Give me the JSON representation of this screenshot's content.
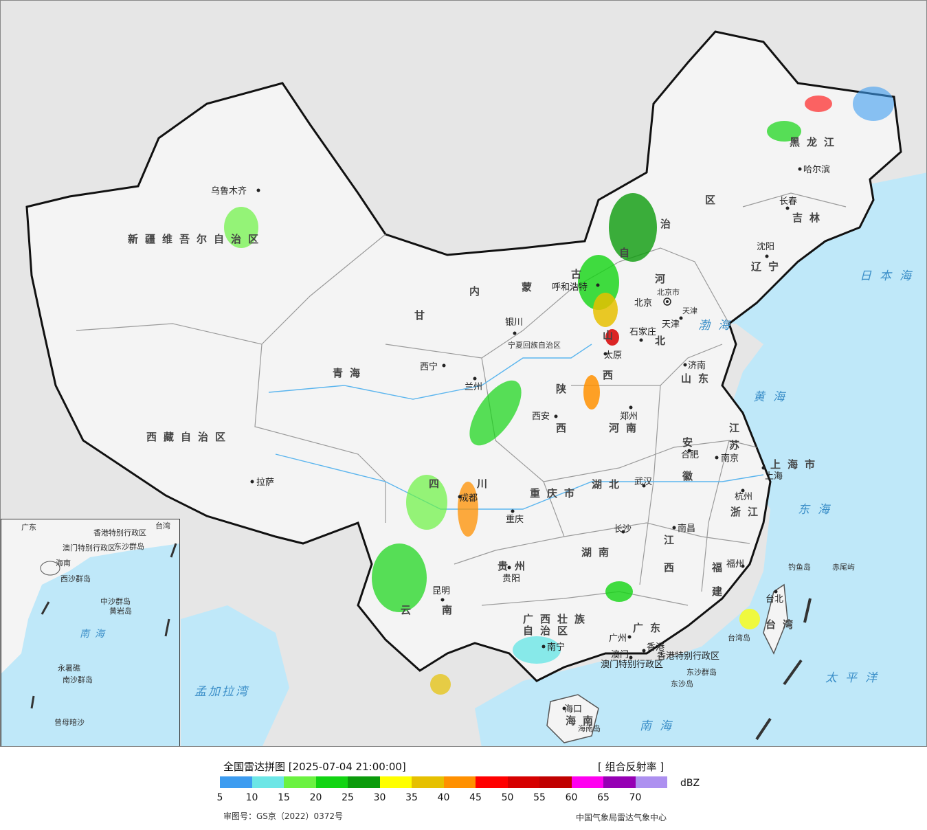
{
  "colors": {
    "ocean": "#bfe8f9",
    "land_china": "#f4f4f4",
    "land_foreign": "#e6e6e6",
    "border": "#111111",
    "province_line": "#9a9a9a",
    "river": "#5bb5ee"
  },
  "legend": {
    "title": "全国雷达拼图 [2025-07-04 21:00:00]",
    "product": "[ 组合反射率 ]",
    "unit": "dBZ",
    "colors": [
      "#3d9cf0",
      "#6ce6e6",
      "#6bf241",
      "#12d412",
      "#0b9b0b",
      "#ffff00",
      "#e6c000",
      "#ff9000",
      "#ff0000",
      "#d60000",
      "#c00000",
      "#ff00f0",
      "#9600b4",
      "#ad90f0"
    ],
    "ticks": [
      "5",
      "10",
      "15",
      "20",
      "25",
      "30",
      "35",
      "40",
      "45",
      "50",
      "55",
      "60",
      "65",
      "70"
    ],
    "approval": "审图号：GS京（2022）0372号",
    "org": "中国气象局雷达气象中心"
  },
  "provinces": [
    "新疆维吾尔自治区",
    "西藏自治区",
    "青海",
    "甘",
    "内",
    "蒙",
    "古",
    "自",
    "治",
    "区",
    "黑龙江",
    "吉林",
    "辽宁",
    "河",
    "北",
    "山",
    "西",
    "陕",
    "西",
    "河南",
    "山东",
    "江",
    "苏",
    "安",
    "徽",
    "湖北",
    "湖南",
    "四",
    "川",
    "重庆市",
    "贵州",
    "云",
    "南",
    "广西壮族",
    "自治区",
    "广东",
    "江",
    "西",
    "福",
    "建",
    "浙江",
    "台湾",
    "海南",
    "上海市",
    "宁夏回族自治区"
  ],
  "cities": [
    "乌鲁木齐",
    "拉萨",
    "西宁",
    "兰州",
    "银川",
    "呼和浩特",
    "北京",
    "天津",
    "石家庄",
    "太原",
    "济南",
    "郑州",
    "西安",
    "成都",
    "重庆",
    "贵阳",
    "昆明",
    "南宁",
    "广州",
    "香港",
    "澳门",
    "长沙",
    "武汉",
    "南昌",
    "合肥",
    "南京",
    "上海",
    "杭州",
    "福州",
    "台北",
    "沈阳",
    "长春",
    "哈尔滨",
    "海口"
  ],
  "labels": {
    "beijing_city": "北京市",
    "tianjin_city": "天津",
    "hk_sar": "香港特别行政区",
    "macau_sar": "澳门特别行政区",
    "diaoyu": "钓鱼岛",
    "chiwei": "赤尾屿",
    "dongsha": "东沙群岛",
    "dongsha_island": "东沙岛",
    "hainan_island": "海南岛",
    "taiwan_island": "台湾岛"
  },
  "seas": [
    "日本海",
    "渤海",
    "黄海",
    "东海",
    "太平洋",
    "南海",
    "孟加拉湾"
  ],
  "inset": {
    "labels": [
      "广东",
      "香港特别行政区",
      "澳门特别行政区",
      "东沙群岛",
      "海南",
      "西沙群岛",
      "中沙群岛",
      "南海",
      "黄岩岛",
      "南沙群岛",
      "永暑礁",
      "曾母暗沙",
      "台湾"
    ]
  }
}
